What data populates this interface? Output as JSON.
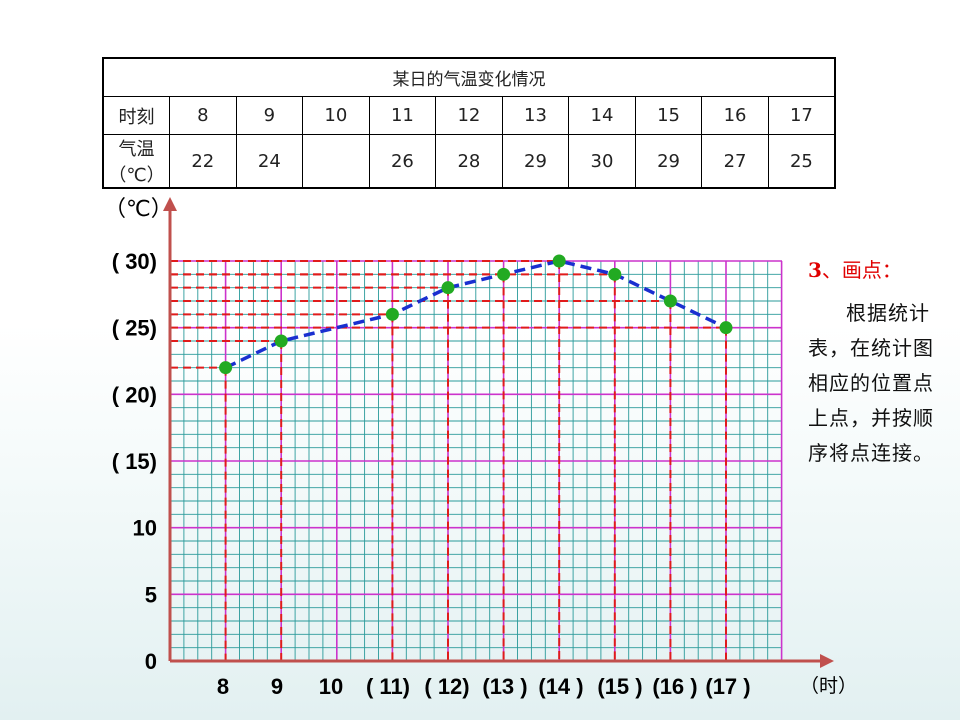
{
  "table": {
    "title": "某日的气温变化情况",
    "row1_label": "时刻",
    "row2_label": "气温（℃）",
    "times": [
      "8",
      "9",
      "10",
      "11",
      "12",
      "13",
      "14",
      "15",
      "16",
      "17"
    ],
    "temps": [
      "22",
      "24",
      "",
      "26",
      "28",
      "29",
      "30",
      "29",
      "27",
      "25"
    ]
  },
  "note": {
    "heading_num": "3",
    "heading_text": "、画点：",
    "body": "根据统计表，在统计图相应的位置点上点，并按顺序将点连接。"
  },
  "chart_data": {
    "type": "line",
    "x_unit_label": "（时）",
    "y_unit_label": "（℃）",
    "x_tick_labels": [
      "8",
      "9",
      "10",
      "( 11)",
      "( 12)",
      "(13 )",
      "(14 )",
      "(15 )",
      "(16 )",
      "(17 )"
    ],
    "y_tick_labels": [
      "0",
      "5",
      "10",
      "( 15)",
      "( 20)",
      "( 25)",
      "( 30)"
    ],
    "y_tick_values": [
      0,
      5,
      10,
      15,
      20,
      25,
      30
    ],
    "ylim": [
      0,
      30
    ],
    "grid": true,
    "series": [
      {
        "x": [
          8,
          9,
          11,
          12,
          13,
          14,
          15,
          16,
          17
        ],
        "y": [
          22,
          24,
          26,
          28,
          29,
          30,
          29,
          27,
          25
        ]
      }
    ],
    "colors": {
      "axis": "#c0504d",
      "point": "#22aa22",
      "line": "#1a2fd0",
      "guide": "#e01b1b",
      "grid_major": "#cc33cc",
      "grid_minor": "#2a9a9a"
    }
  }
}
